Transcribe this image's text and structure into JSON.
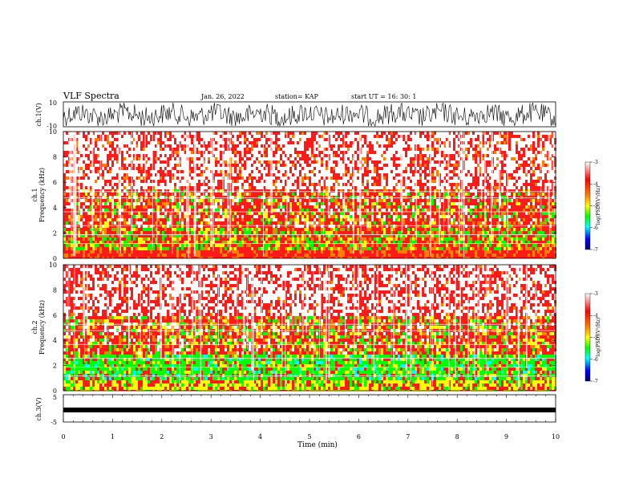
{
  "header": {
    "title": "VLF Spectra",
    "date": "Jan. 26, 2022",
    "station": "station= KAP",
    "start": "start  UT =   16: 30: 1"
  },
  "chart_data": [
    {
      "type": "line",
      "name": "ch1_waveform",
      "ylabel": "ch.1(V)",
      "ylim": [
        -10,
        10
      ],
      "yticks": [
        "10",
        "-10"
      ],
      "xlim": [
        0,
        10
      ]
    },
    {
      "type": "heatmap",
      "name": "ch1_spectrogram",
      "ylabel": "ch.1\nFrequency (kHz)",
      "ylim": [
        0,
        10
      ],
      "yticks": [
        "0",
        "2",
        "4",
        "6",
        "8",
        "10"
      ],
      "xlim": [
        0,
        10
      ],
      "colorbar": {
        "label": "log(PSD)(V²/Hz)",
        "ticks": [
          "-3",
          "-4",
          "-5",
          "-6",
          "-7"
        ],
        "range": [
          -7,
          -3
        ]
      },
      "dominant_level": "red (~ -3.5) with green/yellow bands below 5 kHz"
    },
    {
      "type": "heatmap",
      "name": "ch2_spectrogram",
      "ylabel": "ch.2\nFrequency (kHz)",
      "ylim": [
        0,
        10
      ],
      "yticks": [
        "0",
        "2",
        "4",
        "6",
        "8",
        "10"
      ],
      "xlim": [
        0,
        10
      ],
      "colorbar": {
        "label": "log(PSD)(V²/Hz)",
        "ticks": [
          "-3",
          "-4",
          "-5",
          "-6",
          "-7"
        ],
        "range": [
          -7,
          -3
        ]
      },
      "dominant_level": "red above 4 kHz, green/yellow below 3 kHz"
    },
    {
      "type": "line",
      "name": "ch3_waveform",
      "ylabel": "ch.3(V)",
      "ylim": [
        -5,
        5
      ],
      "yticks": [
        "5",
        "0",
        "-5"
      ],
      "xlim": [
        0,
        10
      ],
      "approx_level": -1
    }
  ],
  "xaxis": {
    "label": "Time (min)",
    "ticks": [
      "0",
      "1",
      "2",
      "3",
      "4",
      "5",
      "6",
      "7",
      "8",
      "9",
      "10"
    ]
  },
  "colors": {
    "white": "#ffffff",
    "red": "#ff1a1a",
    "orange": "#ff8000",
    "yellow": "#ffff00",
    "green": "#00ff00",
    "cyan": "#00ffff",
    "blue": "#0000ff",
    "navy": "#000080"
  }
}
